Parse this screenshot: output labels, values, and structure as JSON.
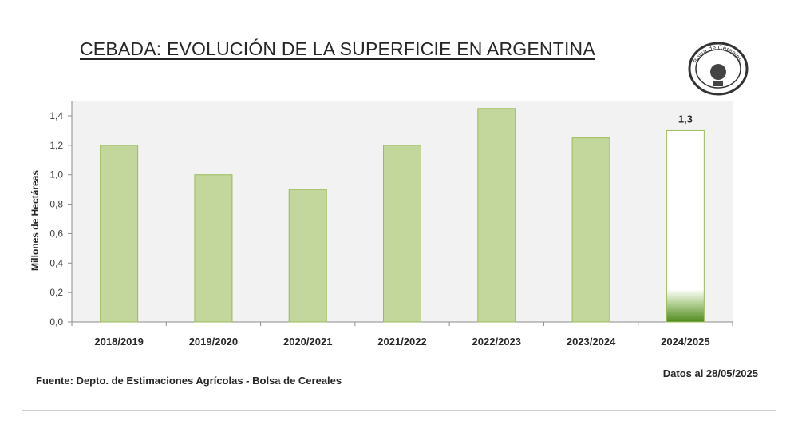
{
  "title": "CEBADA: EVOLUCIÓN DE LA SUPERFICIE EN ARGENTINA",
  "source": "Fuente: Depto. de Estimaciones Agrícolas - Bolsa de Cereales",
  "date_note": "Datos al 28/05/2025",
  "logo": {
    "text": "Bolsa de Cereales"
  },
  "colors": {
    "bar_fill": "#c3d69b",
    "bar_stroke": "#9bbb59",
    "highlight_bar_fill": "#ffffff",
    "highlight_bar_bottom": "#4f8a1e",
    "plot_bg": "#f2f2f2"
  },
  "chart_data": {
    "type": "bar",
    "categories": [
      "2018/2019",
      "2019/2020",
      "2020/2021",
      "2021/2022",
      "2022/2023",
      "2023/2024",
      "2024/2025"
    ],
    "values": [
      1.2,
      1.0,
      0.9,
      1.2,
      1.45,
      1.25,
      1.3
    ],
    "data_labels": [
      "",
      "",
      "",
      "",
      "",
      "",
      "1,3"
    ],
    "highlight_index": 6,
    "ylabel": "Millones de Hectáreas",
    "xlabel": "",
    "ylim": [
      0,
      1.4
    ],
    "yticks": [
      0,
      0.2,
      0.4,
      0.6,
      0.8,
      1.0,
      1.2,
      1.4
    ],
    "ytick_labels": [
      "0,0",
      "0,2",
      "0,4",
      "0,6",
      "0,8",
      "1,0",
      "1,2",
      "1,4"
    ],
    "grid": false,
    "legend": "none"
  }
}
